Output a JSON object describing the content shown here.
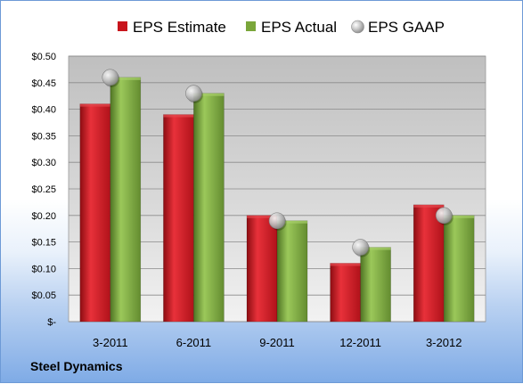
{
  "chart_data": {
    "type": "bar",
    "categories": [
      "3-2011",
      "6-2011",
      "9-2011",
      "12-2011",
      "3-2012"
    ],
    "series": [
      {
        "name": "EPS Estimate",
        "values": [
          0.41,
          0.39,
          0.2,
          0.11,
          0.22
        ],
        "color": "#c8141c",
        "kind": "bar"
      },
      {
        "name": "EPS Actual",
        "values": [
          0.46,
          0.43,
          0.19,
          0.14,
          0.2
        ],
        "color": "#7aa63a",
        "kind": "bar"
      },
      {
        "name": "EPS GAAP",
        "values": [
          0.46,
          0.43,
          0.19,
          0.14,
          0.2
        ],
        "color": "#a8a8a8",
        "kind": "marker"
      }
    ],
    "ylim": [
      0,
      0.5
    ],
    "yticks": [
      0,
      0.05,
      0.1,
      0.15,
      0.2,
      0.25,
      0.3,
      0.35,
      0.4,
      0.45,
      0.5
    ],
    "ytick_labels": [
      "$-",
      "$0.05",
      "$0.10",
      "$0.15",
      "$0.20",
      "$0.25",
      "$0.30",
      "$0.35",
      "$0.40",
      "$0.45",
      "$0.50"
    ],
    "grid": true,
    "legend_position": "top"
  },
  "company": "Steel Dynamics"
}
